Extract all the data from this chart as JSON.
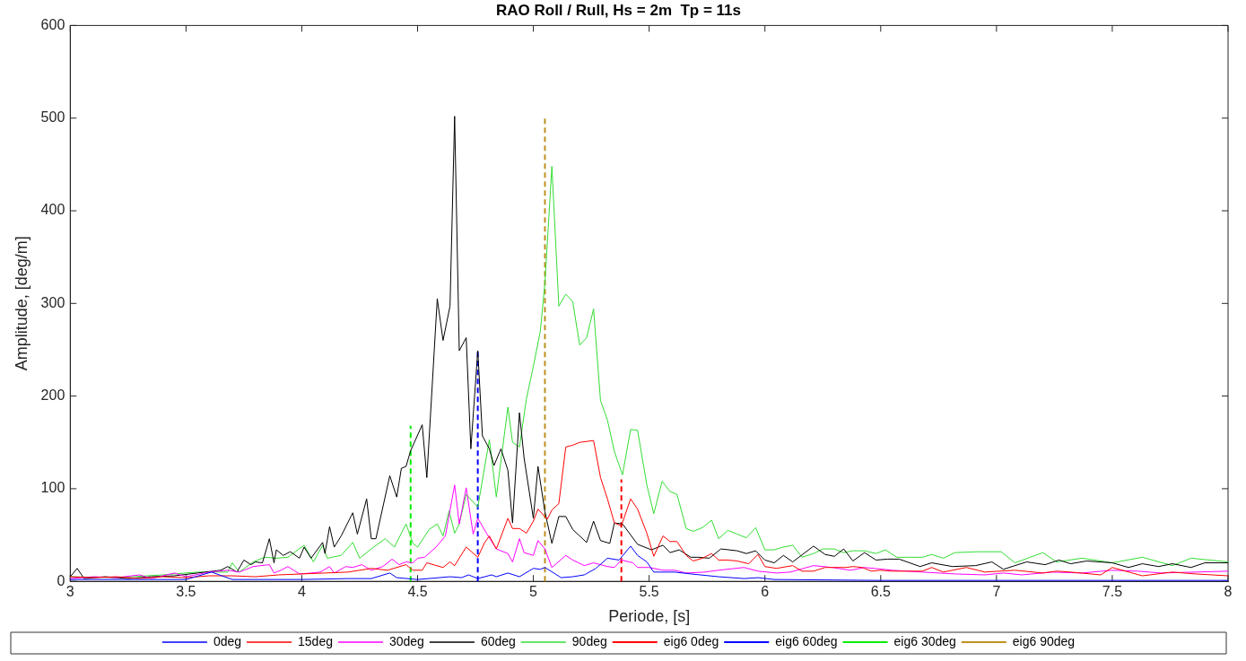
{
  "chart_data": {
    "type": "line",
    "title": "RAO Roll / Rull, Hs = 2m  Tp = 11s",
    "xlabel": "Periode, [s]",
    "ylabel": "Amplitude, [deg/m]",
    "xlim": [
      3,
      8
    ],
    "ylim": [
      0,
      600
    ],
    "xticks": [
      3,
      3.5,
      4,
      4.5,
      5,
      5.5,
      6,
      6.5,
      7,
      7.5,
      8
    ],
    "yticks": [
      0,
      100,
      200,
      300,
      400,
      500,
      600
    ],
    "grid": false,
    "legend": "bottom",
    "marker": "none",
    "line_style": "solid",
    "series": [
      {
        "name": "0deg",
        "color": "#0000ff",
        "x": [
          3.0,
          3.3,
          3.5,
          3.61,
          3.7,
          4.0,
          4.2,
          4.3,
          4.38,
          4.41,
          4.5,
          4.64,
          4.69,
          4.72,
          4.76,
          4.82,
          4.84,
          4.89,
          4.94,
          5.0,
          5.03,
          5.05,
          5.12,
          5.17,
          5.22,
          5.27,
          5.32,
          5.37,
          5.42,
          5.45,
          5.49,
          5.52,
          5.61,
          5.68,
          5.8,
          5.91,
          5.97,
          6.04,
          6.5,
          7.0,
          7.5,
          8.0
        ],
        "values": [
          2,
          2,
          2,
          10,
          2,
          2,
          3,
          3,
          9,
          4,
          2,
          5,
          4,
          7,
          3,
          7,
          5,
          9,
          5,
          14,
          13,
          15,
          4,
          5,
          7,
          14,
          25,
          23,
          38,
          28,
          21,
          10,
          10,
          8,
          5,
          3,
          4,
          2,
          1,
          1,
          1,
          1
        ]
      },
      {
        "name": "15deg",
        "color": "#ff0000",
        "x": [
          3.0,
          3.1,
          3.2,
          3.3,
          3.4,
          3.5,
          3.6,
          3.7,
          3.8,
          3.9,
          4.0,
          4.1,
          4.2,
          4.3,
          4.37,
          4.45,
          4.48,
          4.52,
          4.54,
          4.61,
          4.64,
          4.66,
          4.71,
          4.76,
          4.79,
          4.81,
          4.84,
          4.89,
          4.91,
          4.94,
          4.97,
          5.0,
          5.02,
          5.06,
          5.08,
          5.11,
          5.14,
          5.17,
          5.2,
          5.26,
          5.29,
          5.32,
          5.35,
          5.38,
          5.42,
          5.45,
          5.49,
          5.52,
          5.56,
          5.59,
          5.62,
          5.66,
          5.69,
          5.73,
          5.77,
          5.8,
          5.84,
          5.88,
          5.93,
          5.97,
          6.0,
          6.05,
          6.12,
          6.16,
          6.21,
          6.26,
          6.3,
          6.35,
          6.38,
          6.42,
          6.46,
          6.5,
          6.55,
          6.62,
          6.68,
          6.72,
          6.77,
          6.87,
          6.95,
          7.08,
          7.2,
          7.26,
          7.32,
          7.45,
          7.5,
          7.63,
          7.76,
          7.86,
          8.0
        ],
        "values": [
          5,
          4,
          5,
          3,
          5,
          4,
          6,
          6,
          5,
          7,
          8,
          9,
          10,
          14,
          12,
          18,
          12,
          12,
          20,
          15,
          21,
          17,
          37,
          26,
          42,
          49,
          35,
          68,
          57,
          57,
          52,
          65,
          78,
          67,
          77,
          84,
          145,
          147,
          150,
          152,
          112,
          89,
          63,
          60,
          89,
          78,
          52,
          27,
          49,
          43,
          43,
          28,
          22,
          25,
          30,
          23,
          23,
          22,
          19,
          29,
          16,
          14,
          17,
          11,
          11,
          15,
          15,
          15,
          16,
          15,
          11,
          12,
          11,
          11,
          11,
          15,
          10,
          15,
          10,
          12,
          9,
          11,
          10,
          7,
          15,
          6,
          10,
          8,
          6
        ]
      },
      {
        "name": "30deg",
        "color": "#ff00ff",
        "x": [
          3.0,
          3.1,
          3.2,
          3.3,
          3.35,
          3.45,
          3.5,
          3.6,
          3.68,
          3.73,
          3.79,
          3.86,
          3.88,
          3.91,
          3.94,
          3.99,
          4.04,
          4.08,
          4.12,
          4.14,
          4.19,
          4.22,
          4.26,
          4.3,
          4.35,
          4.39,
          4.42,
          4.45,
          4.48,
          4.5,
          4.53,
          4.58,
          4.62,
          4.66,
          4.68,
          4.71,
          4.74,
          4.76,
          4.8,
          4.84,
          4.89,
          4.91,
          4.94,
          4.96,
          5.0,
          5.02,
          5.05,
          5.08,
          5.14,
          5.17,
          5.22,
          5.26,
          5.32,
          5.35,
          5.38,
          5.43,
          5.45,
          5.5,
          5.56,
          5.61,
          5.66,
          5.74,
          5.8,
          5.91,
          5.97,
          6.05,
          6.11,
          6.21,
          6.29,
          6.37,
          6.43,
          6.55,
          6.68,
          6.82,
          6.95,
          7.03,
          7.11,
          7.24,
          7.37,
          7.5,
          7.61,
          7.71,
          7.86,
          8.0
        ],
        "values": [
          3,
          5,
          4,
          7,
          3,
          9,
          5,
          10,
          12,
          10,
          16,
          18,
          9,
          12,
          16,
          8,
          9,
          10,
          16,
          9,
          16,
          15,
          18,
          12,
          16,
          24,
          18,
          21,
          20,
          25,
          26,
          37,
          49,
          104,
          62,
          101,
          51,
          68,
          51,
          35,
          30,
          21,
          46,
          31,
          28,
          44,
          35,
          15,
          28,
          23,
          17,
          20,
          16,
          15,
          23,
          20,
          15,
          15,
          12,
          12,
          9,
          10,
          12,
          15,
          11,
          9,
          10,
          17,
          15,
          12,
          15,
          12,
          10,
          8,
          7,
          9,
          7,
          10,
          9,
          12,
          11,
          9,
          10,
          11
        ]
      },
      {
        "name": "60deg",
        "color": "#000000",
        "x": [
          3.0,
          3.03,
          3.06,
          3.15,
          3.25,
          3.35,
          3.45,
          3.55,
          3.65,
          3.68,
          3.72,
          3.75,
          3.78,
          3.8,
          3.83,
          3.86,
          3.88,
          3.89,
          3.92,
          3.95,
          3.99,
          4.01,
          4.04,
          4.09,
          4.1,
          4.12,
          4.14,
          4.17,
          4.22,
          4.24,
          4.28,
          4.3,
          4.32,
          4.38,
          4.41,
          4.43,
          4.45,
          4.47,
          4.52,
          4.54,
          4.585,
          4.61,
          4.64,
          4.66,
          4.68,
          4.71,
          4.73,
          4.76,
          4.78,
          4.81,
          4.83,
          4.86,
          4.89,
          4.91,
          4.94,
          4.96,
          5.0,
          5.02,
          5.05,
          5.08,
          5.11,
          5.14,
          5.17,
          5.23,
          5.26,
          5.29,
          5.33,
          5.35,
          5.385,
          5.45,
          5.51,
          5.56,
          5.59,
          5.63,
          5.68,
          5.71,
          5.76,
          5.81,
          5.88,
          5.92,
          5.96,
          6.0,
          6.04,
          6.08,
          6.12,
          6.21,
          6.26,
          6.3,
          6.34,
          6.38,
          6.43,
          6.48,
          6.53,
          6.58,
          6.67,
          6.72,
          6.81,
          6.91,
          6.98,
          7.03,
          7.13,
          7.21,
          7.27,
          7.32,
          7.39,
          7.5,
          7.57,
          7.63,
          7.7,
          7.76,
          7.84,
          7.9,
          8.0
        ],
        "values": [
          5,
          14,
          3,
          5,
          3,
          5,
          6,
          9,
          12,
          16,
          10,
          23,
          18,
          21,
          20,
          46,
          20,
          34,
          28,
          32,
          25,
          37,
          25,
          42,
          30,
          59,
          37,
          49,
          74,
          51,
          89,
          46,
          46,
          114,
          91,
          122,
          124,
          141,
          169,
          112,
          305,
          260,
          297,
          502,
          249,
          263,
          143,
          249,
          157,
          143,
          125,
          143,
          120,
          63,
          182,
          133,
          68,
          124,
          75,
          41,
          70,
          70,
          56,
          42,
          65,
          44,
          41,
          63,
          62,
          40,
          34,
          39,
          31,
          34,
          26,
          26,
          25,
          35,
          33,
          30,
          33,
          23,
          20,
          28,
          21,
          38,
          29,
          27,
          35,
          22,
          31,
          23,
          24,
          24,
          16,
          20,
          16,
          17,
          21,
          13,
          21,
          18,
          23,
          19,
          22,
          20,
          15,
          19,
          16,
          19,
          15,
          20,
          20
        ]
      },
      {
        "name": "90deg",
        "color": "#33dd33",
        "x": [
          3.0,
          3.2,
          3.4,
          3.55,
          3.68,
          3.7,
          3.73,
          3.79,
          3.84,
          3.89,
          3.94,
          4.01,
          4.05,
          4.09,
          4.11,
          4.17,
          4.22,
          4.25,
          4.31,
          4.36,
          4.4,
          4.45,
          4.48,
          4.5,
          4.55,
          4.585,
          4.61,
          4.636,
          4.66,
          4.68,
          4.71,
          4.76,
          4.81,
          4.84,
          4.89,
          4.91,
          4.94,
          4.97,
          5.0,
          5.03,
          5.05,
          5.08,
          5.11,
          5.14,
          5.17,
          5.2,
          5.23,
          5.26,
          5.29,
          5.32,
          5.35,
          5.385,
          5.42,
          5.45,
          5.49,
          5.52,
          5.556,
          5.59,
          5.62,
          5.66,
          5.69,
          5.73,
          5.77,
          5.8,
          5.84,
          5.88,
          5.92,
          5.96,
          6.0,
          6.04,
          6.08,
          6.12,
          6.16,
          6.21,
          6.25,
          6.3,
          6.34,
          6.38,
          6.43,
          6.48,
          6.52,
          6.57,
          6.63,
          6.68,
          6.72,
          6.77,
          6.82,
          6.92,
          7.02,
          7.08,
          7.2,
          7.26,
          7.37,
          7.45,
          7.5,
          7.63,
          7.76,
          7.84,
          8.0
        ],
        "values": [
          5,
          4,
          7,
          10,
          10,
          20,
          10,
          21,
          26,
          25,
          26,
          39,
          21,
          39,
          25,
          28,
          42,
          25,
          37,
          46,
          37,
          62,
          41,
          37,
          56,
          62,
          49,
          76,
          52,
          62,
          94,
          80,
          153,
          91,
          188,
          150,
          145,
          197,
          232,
          270,
          322,
          448,
          297,
          310,
          302,
          255,
          263,
          294,
          195,
          174,
          140,
          115,
          164,
          163,
          104,
          73,
          108,
          97,
          94,
          57,
          54,
          58,
          66,
          46,
          55,
          51,
          47,
          58,
          34,
          34,
          37,
          39,
          26,
          30,
          35,
          35,
          31,
          33,
          33,
          30,
          34,
          26,
          26,
          26,
          29,
          25,
          31,
          32,
          32,
          20,
          31,
          21,
          25,
          22,
          20,
          26,
          17,
          25,
          21
        ]
      },
      {
        "name": "eig6 0deg",
        "color": "#ff0000",
        "line_style": "dashed",
        "x": [
          5.38,
          5.38
        ],
        "values": [
          0,
          110
        ]
      },
      {
        "name": "eig6 60deg",
        "color": "#0000ff",
        "line_style": "dashed",
        "x": [
          4.76,
          4.76
        ],
        "values": [
          0,
          248
        ]
      },
      {
        "name": "eig6 30deg",
        "color": "#00ee00",
        "line_style": "dashed",
        "x": [
          4.47,
          4.47
        ],
        "values": [
          0,
          168
        ]
      },
      {
        "name": "eig6 90deg",
        "color": "#bf9020",
        "line_style": "dashed",
        "x": [
          5.05,
          5.05
        ],
        "values": [
          0,
          500
        ]
      }
    ]
  }
}
